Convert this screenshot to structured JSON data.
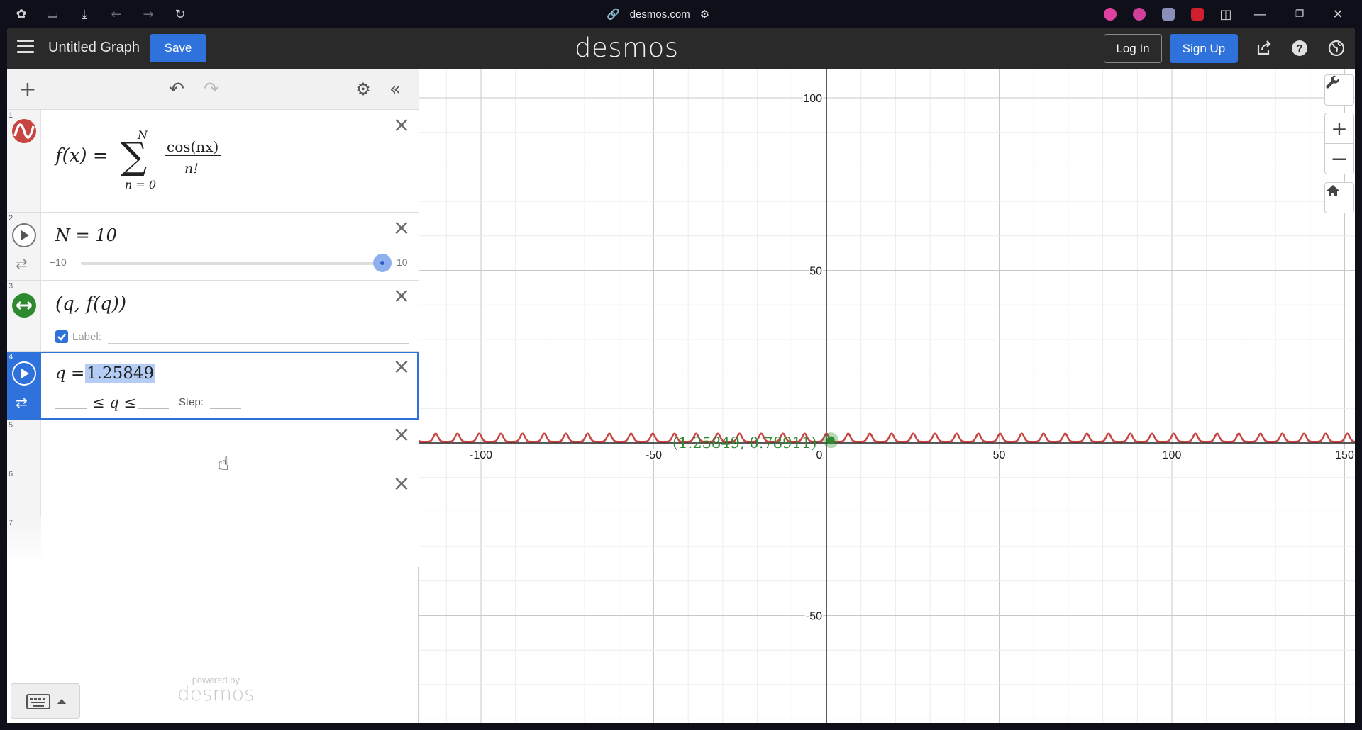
{
  "browser": {
    "url": "desmos.com"
  },
  "header": {
    "graph_title": "Untitled Graph",
    "save_label": "Save",
    "logo": "desmos",
    "login_label": "Log In",
    "signup_label": "Sign Up"
  },
  "expressions": [
    {
      "num": "1",
      "type": "function",
      "color": "#c74440",
      "lhs": "f(x) =",
      "sum_top": "N",
      "sum_bottom": "n = 0",
      "frac_num": "cos(nx)",
      "frac_den": "n!"
    },
    {
      "num": "2",
      "type": "slider",
      "text": "N = 10",
      "slider_min": "−10",
      "slider_max": "10",
      "slider_value": 10
    },
    {
      "num": "3",
      "type": "point",
      "color": "#2d8a2f",
      "text": "(q, f(q))",
      "label_caption": "Label:",
      "label_checked": true
    },
    {
      "num": "4",
      "type": "variable",
      "lhs": "q =",
      "value": "1.25849",
      "range_text": "≤ q ≤",
      "step_label": "Step:"
    },
    {
      "num": "5",
      "type": "empty"
    },
    {
      "num": "6",
      "type": "empty"
    },
    {
      "num": "7",
      "type": "empty"
    }
  ],
  "footer": {
    "powered_by": "powered by",
    "powered_logo": "desmos"
  },
  "graph": {
    "point_label": "(1.25849, 0.78911)",
    "curve_color": "#c74440",
    "point_color": "#2d8a2f",
    "x_ticks": [
      "-100",
      "-50",
      "0",
      "50",
      "100",
      "150"
    ],
    "y_ticks": [
      "100",
      "50",
      "-50"
    ]
  },
  "chart_data": {
    "type": "line",
    "title": "",
    "xlabel": "",
    "ylabel": "",
    "xlim": [
      -117,
      151
    ],
    "ylim": [
      -82,
      109
    ],
    "x_ticks": [
      -100,
      -50,
      0,
      50,
      100,
      150
    ],
    "y_ticks": [
      -50,
      50,
      100
    ],
    "grid": true,
    "series": [
      {
        "expression": "f(x) = sum_{n=0}^{N} cos(nx)/n!",
        "N": 10,
        "y_range_approx": [
          -0.46,
          2.72
        ]
      }
    ],
    "points": [
      {
        "x": 1.25849,
        "y": 0.78911,
        "label": "(1.25849, 0.78911)"
      }
    ]
  }
}
